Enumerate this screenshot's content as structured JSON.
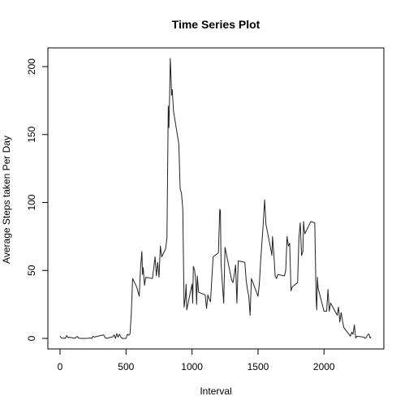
{
  "chart_data": {
    "type": "line",
    "title": "Time Series Plot",
    "xlabel": "Interval",
    "ylabel": "Average Steps taken Per Day",
    "xlim": [
      0,
      2355
    ],
    "ylim": [
      0,
      206
    ],
    "x_ticks": [
      0,
      500,
      1000,
      1500,
      2000
    ],
    "y_ticks": [
      0,
      50,
      100,
      150,
      200
    ],
    "grid": false,
    "series": [
      {
        "color": "#222222",
        "points": [
          [
            0,
            1.7
          ],
          [
            10,
            0.3
          ],
          [
            20,
            0.1
          ],
          [
            30,
            0.2
          ],
          [
            40,
            0
          ],
          [
            50,
            2.1
          ],
          [
            60,
            0.5
          ],
          [
            70,
            0.8
          ],
          [
            100,
            0.3
          ],
          [
            110,
            0.1
          ],
          [
            120,
            0.7
          ],
          [
            130,
            1.5
          ],
          [
            140,
            0.2
          ],
          [
            160,
            0
          ],
          [
            200,
            0
          ],
          [
            230,
            0.3
          ],
          [
            240,
            0
          ],
          [
            250,
            1.5
          ],
          [
            260,
            1.0
          ],
          [
            330,
            2.6
          ],
          [
            340,
            0.7
          ],
          [
            350,
            0
          ],
          [
            400,
            1.2
          ],
          [
            410,
            2.6
          ],
          [
            420,
            0
          ],
          [
            430,
            3.5
          ],
          [
            440,
            0.9
          ],
          [
            450,
            3.1
          ],
          [
            460,
            1.1
          ],
          [
            470,
            0
          ],
          [
            500,
            0
          ],
          [
            510,
            3.0
          ],
          [
            520,
            2.3
          ],
          [
            530,
            3.3
          ],
          [
            540,
            18.5
          ],
          [
            550,
            44
          ],
          [
            580,
            38
          ],
          [
            600,
            31
          ],
          [
            610,
            52
          ],
          [
            620,
            64
          ],
          [
            625,
            47
          ],
          [
            630,
            52
          ],
          [
            640,
            39
          ],
          [
            650,
            45
          ],
          [
            700,
            44
          ],
          [
            710,
            52
          ],
          [
            720,
            60
          ],
          [
            730,
            46
          ],
          [
            740,
            56
          ],
          [
            750,
            45
          ],
          [
            760,
            68
          ],
          [
            770,
            60
          ],
          [
            800,
            66
          ],
          [
            810,
            74
          ],
          [
            820,
            171
          ],
          [
            825,
            155
          ],
          [
            830,
            178
          ],
          [
            835,
            206
          ],
          [
            840,
            195
          ],
          [
            845,
            179
          ],
          [
            850,
            183
          ],
          [
            860,
            167
          ],
          [
            900,
            143
          ],
          [
            910,
            110
          ],
          [
            920,
            107
          ],
          [
            930,
            95
          ],
          [
            940,
            23
          ],
          [
            950,
            31
          ],
          [
            955,
            40
          ],
          [
            960,
            21
          ],
          [
            1000,
            40
          ],
          [
            1005,
            26
          ],
          [
            1010,
            53
          ],
          [
            1020,
            50
          ],
          [
            1030,
            40
          ],
          [
            1035,
            25
          ],
          [
            1040,
            46
          ],
          [
            1050,
            34
          ],
          [
            1100,
            32
          ],
          [
            1110,
            22
          ],
          [
            1120,
            32
          ],
          [
            1130,
            29
          ],
          [
            1140,
            27
          ],
          [
            1150,
            44
          ],
          [
            1160,
            60
          ],
          [
            1200,
            63
          ],
          [
            1210,
            95
          ],
          [
            1215,
            94
          ],
          [
            1220,
            55
          ],
          [
            1230,
            40
          ],
          [
            1240,
            26
          ],
          [
            1250,
            67
          ],
          [
            1300,
            43
          ],
          [
            1310,
            41
          ],
          [
            1320,
            47
          ],
          [
            1330,
            54
          ],
          [
            1340,
            26
          ],
          [
            1350,
            57
          ],
          [
            1400,
            56
          ],
          [
            1410,
            43
          ],
          [
            1420,
            36
          ],
          [
            1430,
            31
          ],
          [
            1440,
            17
          ],
          [
            1450,
            44
          ],
          [
            1500,
            31
          ],
          [
            1510,
            40
          ],
          [
            1520,
            57
          ],
          [
            1540,
            85
          ],
          [
            1550,
            102
          ],
          [
            1560,
            84
          ],
          [
            1600,
            64
          ],
          [
            1605,
            61
          ],
          [
            1610,
            75
          ],
          [
            1620,
            62
          ],
          [
            1630,
            46
          ],
          [
            1640,
            44
          ],
          [
            1650,
            47
          ],
          [
            1700,
            46
          ],
          [
            1710,
            50
          ],
          [
            1720,
            75
          ],
          [
            1730,
            68
          ],
          [
            1740,
            70
          ],
          [
            1750,
            35
          ],
          [
            1760,
            38
          ],
          [
            1800,
            41
          ],
          [
            1810,
            74
          ],
          [
            1820,
            85
          ],
          [
            1830,
            61
          ],
          [
            1840,
            64
          ],
          [
            1845,
            86
          ],
          [
            1850,
            80
          ],
          [
            1855,
            77
          ],
          [
            1900,
            86
          ],
          [
            1930,
            85
          ],
          [
            1940,
            30
          ],
          [
            1945,
            21
          ],
          [
            1950,
            45
          ],
          [
            1955,
            37
          ],
          [
            2000,
            20
          ],
          [
            2010,
            20
          ],
          [
            2020,
            20
          ],
          [
            2030,
            36
          ],
          [
            2040,
            20
          ],
          [
            2050,
            26
          ],
          [
            2100,
            17
          ],
          [
            2110,
            23
          ],
          [
            2120,
            12
          ],
          [
            2130,
            19
          ],
          [
            2140,
            13
          ],
          [
            2150,
            8
          ],
          [
            2200,
            1.6
          ],
          [
            2210,
            4.6
          ],
          [
            2220,
            3.0
          ],
          [
            2230,
            10
          ],
          [
            2240,
            0.3
          ],
          [
            2250,
            1.6
          ],
          [
            2300,
            1.0
          ],
          [
            2310,
            0.1
          ],
          [
            2320,
            0.7
          ],
          [
            2330,
            2.6
          ],
          [
            2340,
            3.3
          ],
          [
            2350,
            0.2
          ],
          [
            2355,
            1.1
          ]
        ]
      }
    ]
  }
}
